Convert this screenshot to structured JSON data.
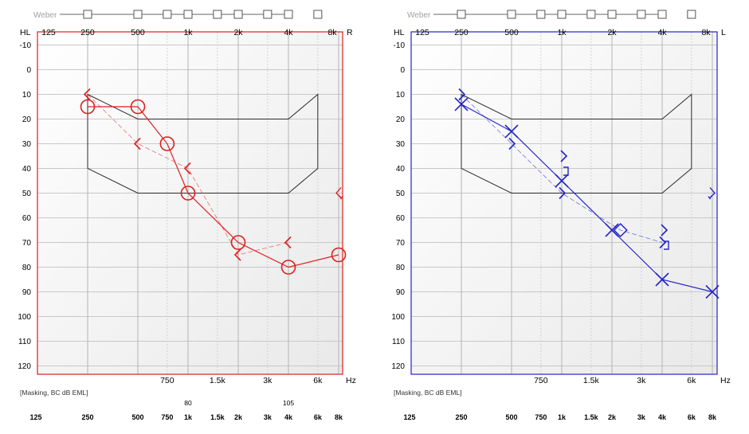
{
  "chart_data": [
    {
      "type": "scatter",
      "ear": "right",
      "ear_label": "R",
      "color": "#dd1f1f",
      "y_unit": "HL",
      "x_unit": "Hz",
      "weber_label": "Weber",
      "footnote": "[Masking, BC dB EML]",
      "top_ticks": [
        "125",
        "250",
        "500",
        "1k",
        "2k",
        "4k",
        "8k"
      ],
      "bottom_ticks": [
        "750",
        "1.5k",
        "3k",
        "6k"
      ],
      "y_ticks": [
        "-10",
        "0",
        "10",
        "20",
        "30",
        "40",
        "50",
        "60",
        "70",
        "80",
        "90",
        "100",
        "110",
        "120"
      ],
      "ylim": [
        -10,
        120
      ],
      "masking": [
        {
          "freq": 1000,
          "value": "80"
        },
        {
          "freq": 4000,
          "value": "105"
        }
      ],
      "masking_scale": [
        "125",
        "250",
        "500",
        "750",
        "1k",
        "1.5k",
        "2k",
        "3k",
        "4k",
        "6k",
        "8k"
      ],
      "speech_banana": [
        [
          250,
          10
        ],
        [
          500,
          20
        ],
        [
          4000,
          20
        ],
        [
          6000,
          10
        ],
        [
          6000,
          40
        ],
        [
          4000,
          50
        ],
        [
          500,
          50
        ],
        [
          250,
          40
        ]
      ],
      "series": [
        {
          "marker": "circle",
          "dashed": false,
          "points": [
            [
              250,
              15
            ],
            [
              500,
              15
            ],
            [
              750,
              30
            ],
            [
              1000,
              50
            ],
            [
              2000,
              70
            ],
            [
              4000,
              80
            ],
            [
              8000,
              75
            ]
          ]
        },
        {
          "marker": "bracket",
          "dashed": true,
          "points": [
            [
              250,
              10
            ],
            [
              500,
              30
            ],
            [
              1000,
              40
            ],
            [
              2000,
              75
            ],
            [
              4000,
              70
            ]
          ]
        }
      ],
      "extra_markers": [
        {
          "marker": "no-response",
          "freq": 8000,
          "value": 50
        }
      ]
    },
    {
      "type": "scatter",
      "ear": "left",
      "ear_label": "L",
      "color": "#2323c8",
      "y_unit": "HL",
      "x_unit": "Hz",
      "weber_label": "Weber",
      "footnote": "[Masking, BC dB EML]",
      "top_ticks": [
        "125",
        "250",
        "500",
        "1k",
        "2k",
        "4k",
        "8k"
      ],
      "bottom_ticks": [
        "750",
        "1.5k",
        "3k",
        "6k"
      ],
      "y_ticks": [
        "-10",
        "0",
        "10",
        "20",
        "30",
        "40",
        "50",
        "60",
        "70",
        "80",
        "90",
        "100",
        "110",
        "120"
      ],
      "ylim": [
        -10,
        120
      ],
      "masking": [],
      "masking_scale": [
        "125",
        "250",
        "500",
        "750",
        "1k",
        "1.5k",
        "2k",
        "3k",
        "4k",
        "6k",
        "8k"
      ],
      "speech_banana": [
        [
          250,
          10
        ],
        [
          500,
          20
        ],
        [
          4000,
          20
        ],
        [
          6000,
          10
        ],
        [
          6000,
          40
        ],
        [
          4000,
          50
        ],
        [
          500,
          50
        ],
        [
          250,
          40
        ]
      ],
      "series": [
        {
          "marker": "cross",
          "dashed": false,
          "points": [
            [
              250,
              14
            ],
            [
              500,
              25
            ],
            [
              1000,
              45
            ],
            [
              2000,
              65
            ],
            [
              4000,
              85
            ],
            [
              8000,
              90
            ]
          ]
        },
        {
          "marker": "bracket",
          "dashed": true,
          "points": [
            [
              250,
              10
            ],
            [
              500,
              30
            ],
            [
              1000,
              50
            ],
            [
              2250,
              65
            ],
            [
              4000,
              70
            ]
          ]
        }
      ],
      "extra_markers": [
        {
          "marker": "bracket",
          "freq": 1000,
          "value": 35
        },
        {
          "marker": "bracket",
          "freq": 4000,
          "value": 65
        },
        {
          "marker": "no-response",
          "freq": 8000,
          "value": 50
        }
      ]
    }
  ]
}
